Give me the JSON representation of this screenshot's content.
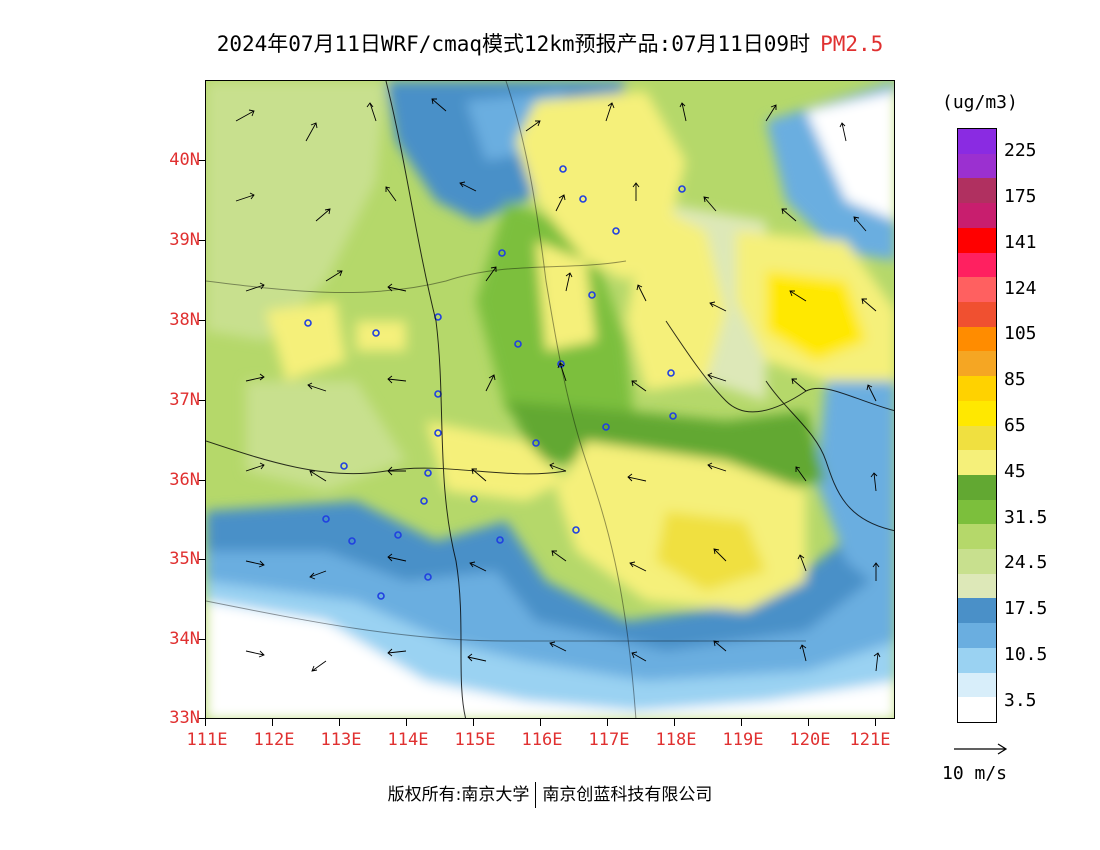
{
  "title": {
    "main": "2024年07月11日WRF/cmaq模式12km预报产品:07月11日09时",
    "pollutant": "PM2.5"
  },
  "map": {
    "lat_labels": [
      "40N",
      "39N",
      "38N",
      "37N",
      "36N",
      "35N",
      "34N",
      "33N"
    ],
    "lon_labels": [
      "111E",
      "112E",
      "113E",
      "114E",
      "115E",
      "116E",
      "117E",
      "118E",
      "119E",
      "120E",
      "121E"
    ],
    "lat_range": [
      33,
      41
    ],
    "lon_range": [
      111,
      121.3
    ]
  },
  "legend": {
    "unit": "(ug/m3)",
    "labels": [
      "225",
      "175",
      "141",
      "124",
      "105",
      "85",
      "65",
      "45",
      "31.5",
      "24.5",
      "17.5",
      "10.5",
      "3.5"
    ],
    "colors_top_to_bottom": [
      "#8a2be2",
      "#9b30d0",
      "#b03060",
      "#c81e6e",
      "#ff0000",
      "#ff2060",
      "#ff6060",
      "#f05030",
      "#ff8c00",
      "#f5a623",
      "#ffd200",
      "#ffe800",
      "#f0e040",
      "#f5f07a",
      "#62a832",
      "#7cbf3c",
      "#b5d86a",
      "#c8e08e",
      "#dde8b8",
      "#4a90c8",
      "#6aaee0",
      "#9ad2f2",
      "#d8eefa",
      "#ffffff"
    ]
  },
  "wind": {
    "reference": "10 m/s"
  },
  "footer": {
    "owner": "版权所有:南京大学",
    "company": "南京创蓝科技有限公司"
  }
}
